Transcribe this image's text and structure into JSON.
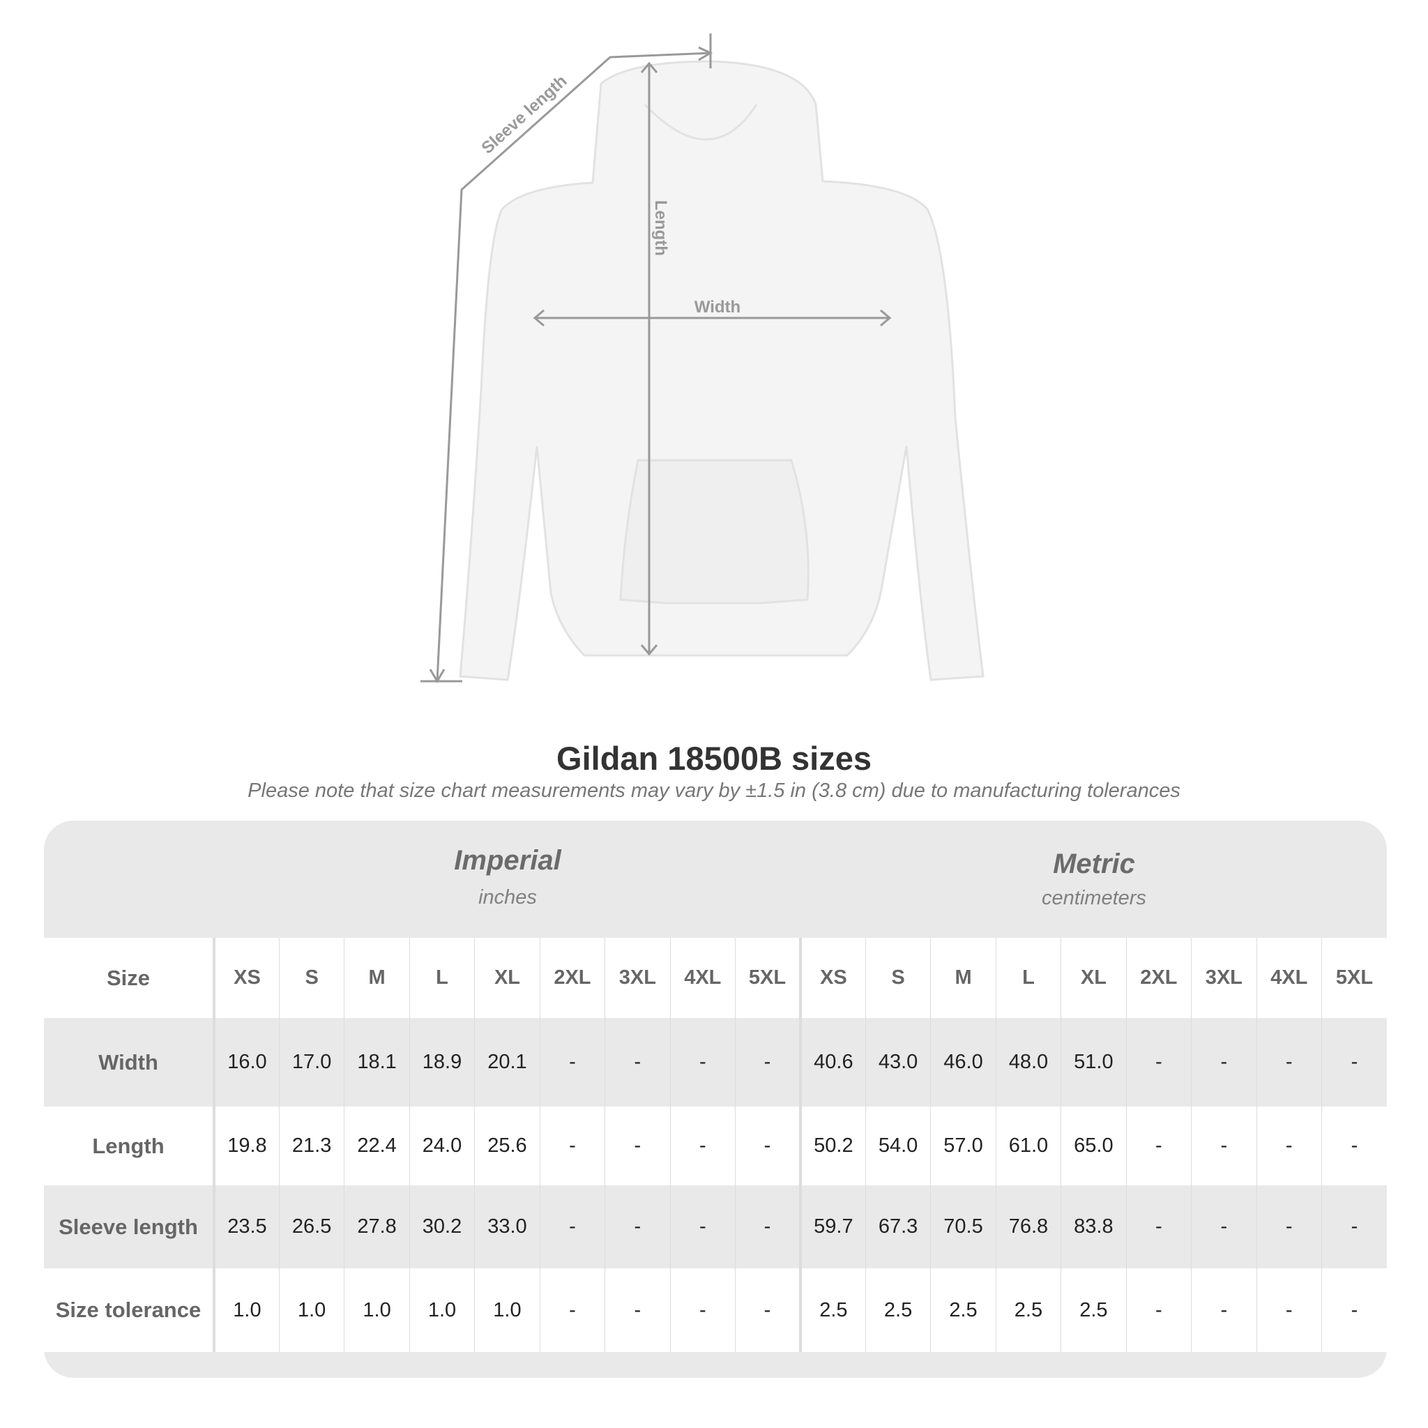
{
  "diagram": {
    "labels": {
      "sleeve": "Sleeve length",
      "length": "Length",
      "width": "Width"
    }
  },
  "title": "Gildan 18500B sizes",
  "note": "Please note that size chart measurements may vary by ±1.5 in (3.8 cm) due to manufacturing tolerances",
  "imperial": {
    "name": "Imperial",
    "unit": "inches"
  },
  "metric": {
    "name": "Metric",
    "unit": "centimeters"
  },
  "size_label": "Size",
  "sizes": [
    "XS",
    "S",
    "M",
    "L",
    "XL",
    "2XL",
    "3XL",
    "4XL",
    "5XL"
  ],
  "rows": [
    {
      "label": "Width",
      "imperial": [
        "16.0",
        "17.0",
        "18.1",
        "18.9",
        "20.1",
        "-",
        "-",
        "-",
        "-"
      ],
      "metric": [
        "40.6",
        "43.0",
        "46.0",
        "48.0",
        "51.0",
        "-",
        "-",
        "-",
        "-"
      ]
    },
    {
      "label": "Length",
      "imperial": [
        "19.8",
        "21.3",
        "22.4",
        "24.0",
        "25.6",
        "-",
        "-",
        "-",
        "-"
      ],
      "metric": [
        "50.2",
        "54.0",
        "57.0",
        "61.0",
        "65.0",
        "-",
        "-",
        "-",
        "-"
      ]
    },
    {
      "label": "Sleeve length",
      "imperial": [
        "23.5",
        "26.5",
        "27.8",
        "30.2",
        "33.0",
        "-",
        "-",
        "-",
        "-"
      ],
      "metric": [
        "59.7",
        "67.3",
        "70.5",
        "76.8",
        "83.8",
        "-",
        "-",
        "-",
        "-"
      ]
    },
    {
      "label": "Size tolerance",
      "imperial": [
        "1.0",
        "1.0",
        "1.0",
        "1.0",
        "1.0",
        "-",
        "-",
        "-",
        "-"
      ],
      "metric": [
        "2.5",
        "2.5",
        "2.5",
        "2.5",
        "2.5",
        "-",
        "-",
        "-",
        "-"
      ]
    }
  ]
}
